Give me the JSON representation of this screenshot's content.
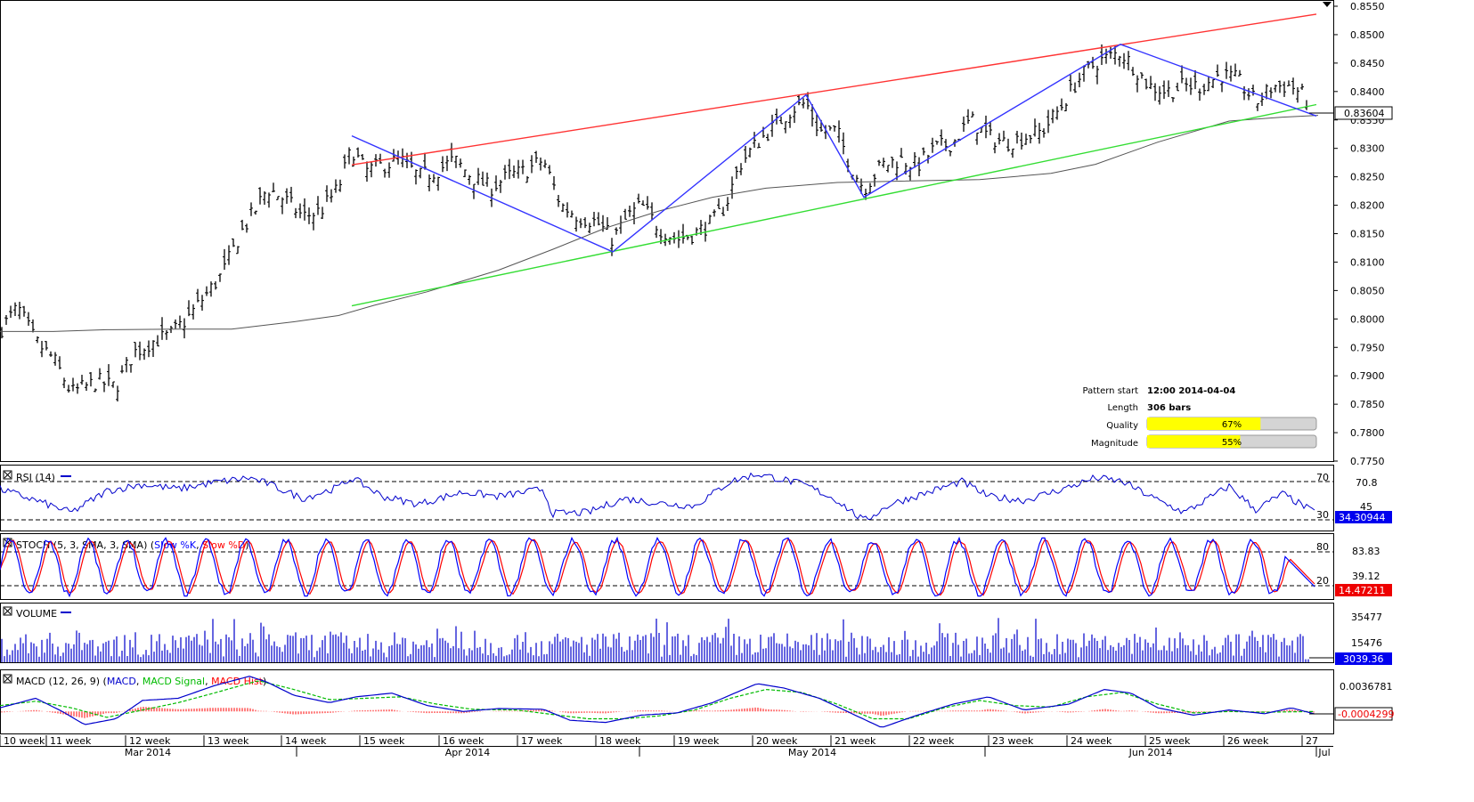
{
  "chart_data": [
    {
      "type": "line",
      "panel": "price",
      "subtype": "ohlc-bars",
      "y_ticks": [
        "0.8550",
        "0.8500",
        "0.8450",
        "0.8400",
        "0.8350",
        "0.8300",
        "0.8250",
        "0.8200",
        "0.8150",
        "0.8100",
        "0.8050",
        "0.8000",
        "0.7950",
        "0.7900",
        "0.7850",
        "0.7800",
        "0.7750"
      ],
      "ylim": [
        0.775,
        0.855
      ],
      "current_price": "0.83604",
      "pattern_info": {
        "pattern_start_label": "Pattern start",
        "pattern_start_value": "12:00 2014-04-04",
        "length_label": "Length",
        "length_value": "306 bars",
        "quality_label": "Quality",
        "quality_value": "67%",
        "quality": 0.67,
        "magnitude_label": "Magnitude",
        "magnitude_value": "55%",
        "magnitude": 0.55
      },
      "series": [
        {
          "name": "resistance",
          "color": "#ff3333",
          "x": [
            395,
            1478
          ],
          "y": [
            0.8271,
            0.8536
          ]
        },
        {
          "name": "support",
          "color": "#33dd33",
          "x": [
            395,
            1478
          ],
          "y": [
            0.8023,
            0.8377
          ]
        },
        {
          "name": "zigzag",
          "color": "#3333ff",
          "x": [
            395,
            688,
            905,
            970,
            1258,
            1478
          ],
          "y": [
            0.8322,
            0.8118,
            0.8394,
            0.8214,
            0.8483,
            0.8357
          ]
        },
        {
          "name": "sma",
          "color": "#555555",
          "x": [
            0,
            60,
            120,
            200,
            260,
            330,
            380,
            420,
            480,
            560,
            620,
            680,
            740,
            800,
            860,
            940,
            1000,
            1100,
            1180,
            1230,
            1300,
            1380,
            1440,
            1480
          ],
          "y": [
            0.7978,
            0.7978,
            0.7981,
            0.7982,
            0.7982,
            0.7995,
            0.8006,
            0.8024,
            0.8048,
            0.8086,
            0.8122,
            0.816,
            0.819,
            0.8214,
            0.823,
            0.824,
            0.8242,
            0.8245,
            0.8256,
            0.8272,
            0.8311,
            0.8348,
            0.8355,
            0.8358
          ]
        },
        {
          "name": "close",
          "color": "#000000",
          "x": [
            0,
            20,
            40,
            60,
            80,
            95,
            110,
            130,
            150,
            170,
            190,
            210,
            230,
            250,
            270,
            290,
            300,
            320,
            340,
            360,
            380,
            395,
            410,
            430,
            450,
            470,
            490,
            510,
            530,
            550,
            570,
            590,
            610,
            630,
            650,
            670,
            688,
            705,
            720,
            740,
            760,
            780,
            800,
            815,
            830,
            850,
            870,
            890,
            905,
            920,
            940,
            955,
            970,
            990,
            1010,
            1030,
            1050,
            1070,
            1090,
            1110,
            1130,
            1150,
            1170,
            1190,
            1210,
            1230,
            1245,
            1258,
            1275,
            1290,
            1310,
            1330,
            1350,
            1370,
            1390,
            1410,
            1430,
            1450,
            1465,
            1478
          ],
          "y": [
            0.798,
            0.802,
            0.796,
            0.793,
            0.787,
            0.788,
            0.789,
            0.788,
            0.794,
            0.796,
            0.797,
            0.8,
            0.804,
            0.808,
            0.815,
            0.82,
            0.823,
            0.821,
            0.818,
            0.819,
            0.823,
            0.83,
            0.826,
            0.827,
            0.828,
            0.825,
            0.826,
            0.828,
            0.825,
            0.823,
            0.825,
            0.826,
            0.828,
            0.82,
            0.818,
            0.817,
            0.814,
            0.818,
            0.82,
            0.816,
            0.814,
            0.815,
            0.817,
            0.82,
            0.827,
            0.831,
            0.834,
            0.837,
            0.838,
            0.833,
            0.833,
            0.827,
            0.823,
            0.827,
            0.828,
            0.827,
            0.83,
            0.831,
            0.835,
            0.832,
            0.831,
            0.832,
            0.833,
            0.837,
            0.842,
            0.845,
            0.846,
            0.847,
            0.844,
            0.841,
            0.84,
            0.841,
            0.841,
            0.843,
            0.842,
            0.838,
            0.841,
            0.841,
            0.839,
            0.836
          ]
        }
      ]
    },
    {
      "type": "line",
      "panel": "rsi",
      "title": "RSI (14)",
      "y_ticks": [
        "70",
        "45",
        "30"
      ],
      "right_labels": [
        "70.8",
        "34.30944"
      ],
      "ylim": [
        15,
        85
      ],
      "levels": [
        70,
        30
      ],
      "series": [
        {
          "name": "RSI",
          "color": "#0000cc",
          "x": [
            0,
            40,
            80,
            120,
            160,
            200,
            240,
            280,
            300,
            340,
            380,
            395,
            430,
            470,
            520,
            560,
            610,
            620,
            660,
            700,
            740,
            780,
            820,
            850,
            880,
            905,
            940,
            970,
            1000,
            1040,
            1080,
            1110,
            1150,
            1200,
            1230,
            1260,
            1300,
            1330,
            1380,
            1410,
            1440,
            1478
          ],
          "y": [
            60,
            48,
            35,
            58,
            65,
            60,
            67,
            72,
            66,
            50,
            62,
            72,
            52,
            44,
            57,
            52,
            60,
            34,
            35,
            50,
            45,
            42,
            68,
            76,
            70,
            64,
            48,
            26,
            44,
            56,
            68,
            52,
            48,
            62,
            72,
            68,
            48,
            35,
            63,
            38,
            55,
            34
          ]
        }
      ]
    },
    {
      "type": "line",
      "panel": "stochastic",
      "title": "STOCH (5, 3, SMA, 3, SMA)",
      "legend": [
        "Slow %K",
        "Slow %D"
      ],
      "y_ticks": [
        "80",
        "20"
      ],
      "right_labels": [
        "83.83",
        "39.12",
        "14.47211"
      ],
      "ylim": [
        0,
        100
      ],
      "levels": [
        80,
        20
      ]
    },
    {
      "type": "bar",
      "panel": "volume",
      "title": "VOLUME",
      "y_ticks": [
        "35477",
        "15476"
      ],
      "current_value": "3039.36",
      "ylim": [
        0,
        55000
      ]
    },
    {
      "type": "line",
      "panel": "macd",
      "title": "MACD (12, 26, 9)",
      "legend": [
        "MACD",
        "MACD Signal",
        "MACD Hist"
      ],
      "y_ticks": [
        "0.0036781"
      ],
      "current_value": "-0.0004299",
      "ylim": [
        -0.003,
        0.0055
      ],
      "series": [
        {
          "name": "MACD",
          "color": "#0000cc",
          "x": [
            0,
            40,
            70,
            95,
            130,
            160,
            200,
            240,
            280,
            300,
            330,
            370,
            400,
            440,
            480,
            520,
            560,
            610,
            640,
            680,
            720,
            760,
            800,
            850,
            880,
            920,
            960,
            990,
            1030,
            1070,
            1110,
            1150,
            1200,
            1240,
            1270,
            1300,
            1340,
            1380,
            1420,
            1450,
            1478
          ],
          "y": [
            0.0005,
            0.0018,
            0.0,
            -0.0018,
            -0.001,
            0.0015,
            0.0018,
            0.0035,
            0.0048,
            0.004,
            0.0022,
            0.0012,
            0.002,
            0.0025,
            0.0008,
            0.0,
            0.0004,
            0.0003,
            -0.0012,
            -0.0015,
            -0.0005,
            -0.0002,
            0.0012,
            0.0038,
            0.0032,
            0.0018,
            -0.0005,
            -0.0022,
            -0.0005,
            0.001,
            0.002,
            0.0002,
            0.001,
            0.003,
            0.0025,
            0.0005,
            -0.0005,
            0.0002,
            -0.0003,
            0.0005,
            -0.0004
          ]
        },
        {
          "name": "MACD Signal",
          "color": "#00bb00",
          "x": [
            0,
            40,
            80,
            120,
            160,
            200,
            240,
            290,
            330,
            370,
            410,
            450,
            490,
            530,
            580,
            620,
            660,
            700,
            740,
            780,
            820,
            860,
            900,
            940,
            980,
            1020,
            1060,
            1100,
            1140,
            1180,
            1220,
            1260,
            1300,
            1340,
            1380,
            1420,
            1478
          ],
          "y": [
            0.0008,
            0.0014,
            0.0005,
            -0.0008,
            0.0002,
            0.0012,
            0.0025,
            0.0042,
            0.003,
            0.0016,
            0.0018,
            0.002,
            0.001,
            0.0003,
            0.0002,
            -0.0004,
            -0.001,
            -0.001,
            -0.0006,
            0.0002,
            0.0018,
            0.003,
            0.0026,
            0.001,
            -0.001,
            -0.001,
            0.0005,
            0.0015,
            0.0008,
            0.0006,
            0.002,
            0.0026,
            0.001,
            -0.0002,
            0.0,
            -0.0001,
            0.0
          ]
        }
      ]
    }
  ],
  "x_axis": {
    "week_labels": [
      "10 week",
      "11 week",
      "12 week",
      "13 week",
      "14 week",
      "15 week",
      "16 week",
      "17 week",
      "18 week",
      "19 week",
      "20 week",
      "21 week",
      "22 week",
      "23 week",
      "24 week",
      "25 week",
      "26 week",
      "27"
    ],
    "month_labels": [
      "Mar 2014",
      "Apr 2014",
      "May 2014",
      "Jun 2014",
      "Jul"
    ]
  },
  "colors": {
    "resistance": "#ff3333",
    "support": "#33dd33",
    "zigzag": "#3333ff",
    "sma": "#555555",
    "bars": "#000000",
    "rsi": "#0000cc",
    "stoch_k": "#0000ff",
    "stoch_d": "#ff0000",
    "volume": "#0000cc",
    "macd": "#0000cc",
    "macd_signal": "#00bb00",
    "macd_hist": "#ff0000",
    "badge_bg": "#0000ee",
    "badge_red": "#ee0000",
    "quality_bar": "#ffff00"
  },
  "icons": [
    "panel-toggle-icon",
    "scroll-marker-icon"
  ]
}
